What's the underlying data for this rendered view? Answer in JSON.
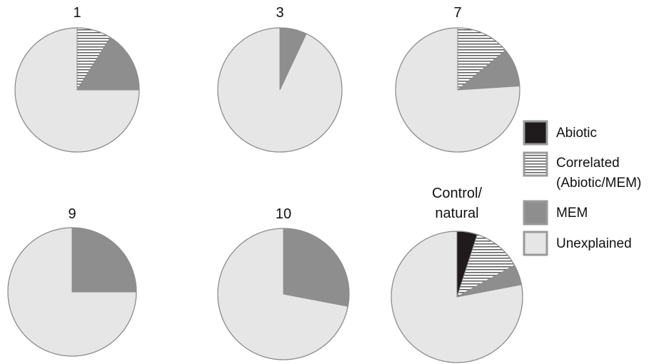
{
  "chart_data": {
    "type": "pie",
    "legend": {
      "placement": "right",
      "entries": [
        {
          "key": "abiotic",
          "label_lines": [
            "Abiotic"
          ]
        },
        {
          "key": "correlated",
          "label_lines": [
            "Correlated",
            "(Abiotic/MEM)"
          ]
        },
        {
          "key": "mem",
          "label_lines": [
            "MEM"
          ]
        },
        {
          "key": "unexplained",
          "label_lines": [
            "Unexplained"
          ]
        }
      ]
    },
    "colors": {
      "abiotic": "#1f1a1c",
      "correlated_stripe": "#333333",
      "correlated_bg": "#ffffff",
      "mem": "#8e8e8e",
      "unexplained": "#e6e6e6",
      "outline": "#8c8c8c"
    },
    "pies": [
      {
        "title_lines": [
          "1"
        ],
        "abiotic": 0.0,
        "correlated": 0.09,
        "mem": 0.16,
        "unexplained": 0.75
      },
      {
        "title_lines": [
          "3"
        ],
        "abiotic": 0.0,
        "correlated": 0.0,
        "mem": 0.07,
        "unexplained": 0.93
      },
      {
        "title_lines": [
          "7"
        ],
        "abiotic": 0.0,
        "correlated": 0.14,
        "mem": 0.1,
        "unexplained": 0.76
      },
      {
        "title_lines": [
          "9"
        ],
        "abiotic": 0.0,
        "correlated": 0.0,
        "mem": 0.25,
        "unexplained": 0.75
      },
      {
        "title_lines": [
          "10"
        ],
        "abiotic": 0.0,
        "correlated": 0.0,
        "mem": 0.28,
        "unexplained": 0.72
      },
      {
        "title_lines": [
          "Control/",
          "natural"
        ],
        "abiotic": 0.05,
        "correlated": 0.12,
        "mem": 0.05,
        "unexplained": 0.78
      }
    ]
  }
}
